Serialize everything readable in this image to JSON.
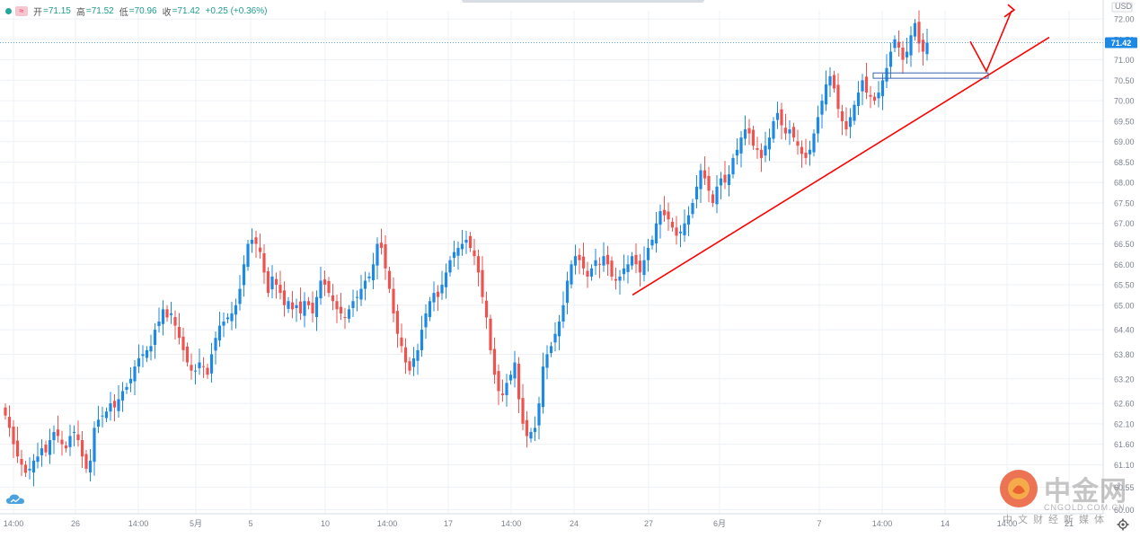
{
  "header": {
    "open_label": "开",
    "open_value": "=71.15",
    "high_label": "高",
    "high_value": "=71.52",
    "low_label": "低",
    "low_value": "=70.96",
    "close_label": "收",
    "close_value": "=71.42",
    "change_value": "+0.25 (+0.36%)",
    "symbol_badge": "≈"
  },
  "price_axis": {
    "currency": "USD",
    "last_price": "71.42",
    "last_price_color": "#1e88e5",
    "tick_labels": [
      "72.00",
      "71.50",
      "71.00",
      "70.50",
      "70.00",
      "69.50",
      "69.00",
      "68.50",
      "68.00",
      "67.50",
      "67.00",
      "66.50",
      "66.00",
      "65.50",
      "65.00",
      "64.40",
      "63.80",
      "63.20",
      "62.60",
      "62.10",
      "61.60",
      "61.10",
      "60.55",
      "60.00"
    ]
  },
  "watermark": {
    "brand": "中金网",
    "url": "CNGOLD.COM.CN",
    "slogan": "中文财经新媒体"
  },
  "chart_data": {
    "type": "candlestick",
    "up_color": "#1e88e5",
    "down_color": "#ef5350",
    "trendline_color": "#ff0000",
    "ylim": [
      59.9,
      72.2
    ],
    "x_tick_labels": [
      "14:00",
      "26",
      "14:00",
      "5月",
      "5",
      "10",
      "14:00",
      "17",
      "14:00",
      "24",
      "27",
      "6月",
      "7",
      "14:00",
      "14",
      "14:00",
      "21"
    ],
    "y_ticks": [
      72.0,
      71.5,
      71.0,
      70.5,
      70.0,
      69.5,
      69.0,
      68.5,
      68.0,
      67.5,
      67.0,
      66.5,
      66.0,
      65.5,
      65.0,
      64.4,
      63.8,
      63.2,
      62.6,
      62.1,
      61.6,
      61.1,
      60.55,
      60.0
    ],
    "last_price": 71.42,
    "close_series": [
      62.3,
      62.0,
      61.6,
      61.3,
      61.1,
      60.9,
      61.0,
      61.2,
      61.3,
      61.5,
      61.4,
      61.7,
      61.9,
      61.8,
      61.6,
      61.5,
      61.8,
      61.9,
      61.7,
      61.3,
      61.0,
      61.2,
      62.0,
      62.2,
      62.3,
      62.4,
      62.6,
      62.5,
      62.7,
      62.9,
      63.0,
      63.2,
      63.5,
      63.7,
      63.8,
      63.9,
      64.0,
      64.4,
      64.6,
      64.9,
      64.7,
      64.8,
      64.5,
      64.2,
      63.9,
      63.6,
      63.4,
      63.4,
      63.6,
      63.5,
      63.3,
      63.8,
      64.2,
      64.5,
      64.6,
      64.7,
      64.8,
      65.0,
      65.4,
      66.0,
      66.5,
      66.6,
      66.5,
      66.3,
      65.8,
      65.3,
      65.7,
      65.5,
      65.3,
      65.0,
      65.1,
      64.9,
      65.0,
      64.8,
      65.1,
      65.0,
      64.8,
      65.2,
      65.6,
      65.5,
      65.3,
      65.1,
      64.9,
      64.8,
      64.7,
      64.9,
      65.1,
      65.2,
      65.4,
      65.6,
      65.7,
      66.0,
      66.5,
      66.4,
      65.9,
      65.4,
      64.8,
      64.3,
      64.0,
      63.6,
      63.4,
      63.7,
      63.9,
      64.4,
      64.8,
      65.1,
      65.3,
      65.2,
      65.5,
      65.8,
      66.1,
      66.3,
      66.4,
      66.5,
      66.6,
      66.4,
      66.2,
      65.8,
      65.2,
      64.7,
      63.9,
      63.3,
      62.9,
      62.8,
      63.1,
      63.3,
      63.6,
      62.7,
      62.1,
      61.8,
      61.9,
      62.0,
      62.6,
      63.5,
      63.8,
      64.0,
      64.3,
      64.6,
      65.0,
      65.6,
      66.0,
      66.2,
      66.1,
      65.9,
      65.7,
      65.9,
      66.1,
      66.0,
      66.2,
      66.0,
      65.7,
      65.6,
      65.7,
      65.9,
      66.0,
      66.2,
      66.0,
      65.8,
      66.1,
      66.4,
      66.6,
      67.0,
      67.3,
      67.2,
      67.1,
      66.9,
      66.7,
      66.8,
      67.0,
      67.2,
      67.5,
      67.9,
      68.3,
      68.1,
      67.8,
      67.5,
      67.9,
      68.1,
      68.0,
      68.2,
      68.6,
      68.8,
      69.1,
      69.3,
      69.2,
      68.9,
      68.8,
      68.6,
      68.9,
      69.1,
      69.5,
      69.7,
      69.4,
      69.2,
      69.3,
      69.1,
      68.9,
      68.7,
      68.6,
      68.8,
      69.2,
      69.6,
      70.0,
      70.4,
      70.6,
      70.3,
      69.8,
      69.5,
      69.3,
      69.6,
      69.9,
      70.2,
      70.5,
      70.2,
      70.1,
      70.0,
      70.2,
      70.5,
      70.8,
      71.2,
      71.5,
      71.3,
      71.0,
      71.2,
      71.6,
      71.9,
      71.4,
      71.2,
      71.42
    ]
  }
}
